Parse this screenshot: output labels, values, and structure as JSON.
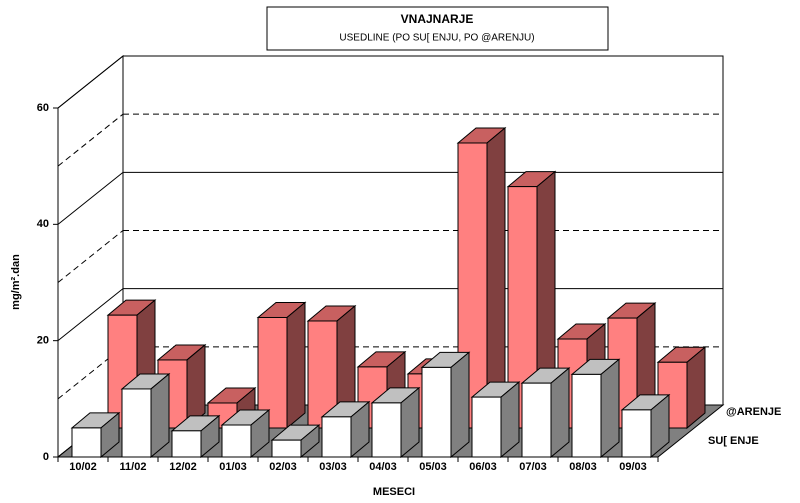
{
  "chart_data": {
    "type": "bar3d",
    "title": "VNAJNARJE",
    "subtitle": "USEDLINE (PO SU[ ENJU, PO @ARENJU)",
    "x_label": "MESECI",
    "y_label": "mg/m².dan",
    "categories": [
      "10/02",
      "11/02",
      "12/02",
      "01/03",
      "02/03",
      "03/03",
      "04/03",
      "05/03",
      "06/03",
      "07/03",
      "08/03",
      "09/03"
    ],
    "series": [
      {
        "name": "SU[ ENJE",
        "color": "#ff8080",
        "values": [
          19.4,
          11.7,
          4.3,
          19,
          18.4,
          10.5,
          9.3,
          49,
          41.5,
          15.3,
          18.9,
          11.3
        ]
      },
      {
        "name": "@ARENJE",
        "color": "#ffffff",
        "values": [
          5,
          11.7,
          4.5,
          5.5,
          2.9,
          6.9,
          9.3,
          15.4,
          10.3,
          12.7,
          14.2,
          8.1
        ]
      }
    ],
    "ylim": [
      0,
      60
    ],
    "yticks": [
      0,
      20,
      40,
      60
    ],
    "minor_yticks": [
      10,
      30,
      50
    ],
    "grid": true
  }
}
